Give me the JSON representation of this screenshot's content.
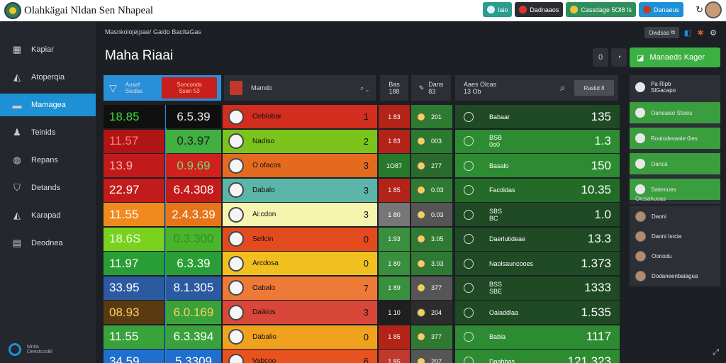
{
  "app": {
    "title": "Olahkägai Nldan Sen Nhapeal"
  },
  "top_pills": [
    {
      "label": "Iaio",
      "bg": "#2a9d8f",
      "dot": "#e0f0ff"
    },
    {
      "label": "Dadnaaos",
      "bg": "#2b2d33",
      "dot": "#d33"
    },
    {
      "label": "Cassdage 5Ol8 Is",
      "bg": "#2f8f5a",
      "dot": "#f0c040"
    },
    {
      "label": "Danaeus",
      "bg": "#1e90d6",
      "dot": "#c0392b"
    }
  ],
  "sidebar": {
    "items": [
      {
        "label": "Kapiar",
        "icon": "▦"
      },
      {
        "label": "Atoperqia",
        "icon": "◭"
      },
      {
        "label": "Mamagea",
        "icon": "▬"
      },
      {
        "label": "Teinids",
        "icon": "♟"
      },
      {
        "label": "Repans",
        "icon": "◍"
      },
      {
        "label": "Detands",
        "icon": "⛉"
      },
      {
        "label": "Karapad",
        "icon": "◭"
      },
      {
        "label": "Deodnea",
        "icon": "▤"
      }
    ],
    "footer": "Mniia\nOeestcosBl"
  },
  "header": {
    "breadcrumb": "Masnkoloje|pae/  Gaido BacitaGas",
    "btn": "Owdsas",
    "page_title": "Maha Riaai",
    "ctrl_a": "0",
    "primary": "Manaeds Kager"
  },
  "colheads": {
    "tab_a": "Ausaf\nSiedas",
    "tab_b": "Sonconds\nSsan 53",
    "team": "Mamdo",
    "col_a": "Bas\n188",
    "col_b": "Dans\n83",
    "col_c": "Aaes Olcas\n13 Ob",
    "search": "Raslid 8"
  },
  "rows": [
    {
      "v1": "18.85",
      "v2": "6.5.39",
      "team": "Oeblobar",
      "n": "1",
      "a": "1 83",
      "b": "201",
      "c": "Babaar",
      "big": "135",
      "bg1": "#101010",
      "bg2": "#0f0f0f",
      "team_bg": "#d22d1e",
      "a_bg": "#b32318",
      "b_bg": "#2f7a33",
      "c_bg": "#1f4a24",
      "fg1": "#3cdc3c",
      "fg2": "#e8e8e8"
    },
    {
      "v1": "11.57",
      "v2": "0.3.97",
      "team": "Nadiso",
      "n": "2",
      "a": "1 83",
      "b": "003",
      "c": "BSB\n0o0",
      "big": "1.3",
      "bg1": "#b01515",
      "bg2": "#40b040",
      "team_bg": "#7ac41c",
      "a_bg": "#b32318",
      "b_bg": "#2a7a2f",
      "c_bg": "#2d8c32",
      "fg1": "#ff8080",
      "fg2": "#222"
    },
    {
      "v1": "13.9",
      "v2": "0.9.69",
      "team": "O ofacos",
      "n": "3",
      "a": "1O87",
      "b": "277",
      "c": "Basalo",
      "big": "150",
      "bg1": "#c11a1a",
      "bg2": "#d22020",
      "team_bg": "#e36a1f",
      "a_bg": "#277a2b",
      "b_bg": "#2a6a2e",
      "c_bg": "#2d8c32",
      "fg1": "#ffb0b0",
      "fg2": "#6be06b"
    },
    {
      "v1": "22.97",
      "v2": "6.4.308",
      "team": "Dabalo",
      "n": "3",
      "a": "1 85",
      "b": "0.03",
      "c": "Facdidas",
      "big": "10.35",
      "bg1": "#c21b1b",
      "bg2": "#c21b1b",
      "team_bg": "#5bb5a8",
      "a_bg": "#b32318",
      "b_bg": "#2f7a33",
      "c_bg": "#236b27",
      "fg1": "#ffffff",
      "fg2": "#ffffff"
    },
    {
      "v1": "11.55",
      "v2": "2.4.3.39",
      "team": "Ai:cdon",
      "n": "3",
      "a": "1 80",
      "b": "0.03",
      "c": "SBS\nBC",
      "big": "1.0",
      "bg1": "#f08a1c",
      "bg2": "#e8741a",
      "team_bg": "#f5f5b0",
      "a_bg": "#777777",
      "b_bg": "#555555",
      "c_bg": "#1f4a24",
      "fg1": "#ffffff",
      "fg2": "#ffffff"
    },
    {
      "v1": "18.6S",
      "v2": "0.3.300",
      "team": "Sellcin",
      "n": "0",
      "a": "1.93",
      "b": "3.05",
      "c": "Daerlutideae",
      "big": "13.3",
      "bg1": "#7ad11e",
      "bg2": "#4ab52a",
      "team_bg": "#e34b1e",
      "a_bg": "#3a8f3e",
      "b_bg": "#2f7a33",
      "c_bg": "#1f4a24",
      "fg1": "#e8ffe8",
      "fg2": "#2d8c2d"
    },
    {
      "v1": "11.97",
      "v2": "6.3.39",
      "team": "Arcdosa",
      "n": "0",
      "a": "1 80",
      "b": "3.03",
      "c": "Naolsauncooes",
      "big": "1.373",
      "bg1": "#2a9e36",
      "bg2": "#2a9e36",
      "team_bg": "#f2c01e",
      "a_bg": "#3a8f3e",
      "b_bg": "#2f7a33",
      "c_bg": "#1f4a24",
      "fg1": "#ffffff",
      "fg2": "#ffffff"
    },
    {
      "v1": "33.95",
      "v2": "8.1.305",
      "team": "Oabalo",
      "n": "7",
      "a": "1 89",
      "b": "377",
      "c": "BSS\nSBE",
      "big": "1333",
      "bg1": "#2c5aa0",
      "bg2": "#2c5aa0",
      "team_bg": "#ee7a38",
      "a_bg": "#3a8f3e",
      "b_bg": "#555555",
      "c_bg": "#1f4a24",
      "fg1": "#ffffff",
      "fg2": "#ffffff"
    },
    {
      "v1": "08.93",
      "v2": "6.0.169",
      "team": "Daikios",
      "n": "3",
      "a": "1 10",
      "b": "204",
      "c": "Oaladdlaa",
      "big": "1.535",
      "bg1": "#5a3a10",
      "bg2": "#3aa23a",
      "team_bg": "#d9473a",
      "a_bg": "#1f1f1f",
      "b_bg": "#2c2c2c",
      "c_bg": "#1f4a24",
      "fg1": "#ffd060",
      "fg2": "#ffd060"
    },
    {
      "v1": "11.55",
      "v2": "6.3.394",
      "team": "Dabalio",
      "n": "0",
      "a": "1 85",
      "b": "377",
      "c": "Babia",
      "big": "1117",
      "bg1": "#3aa23a",
      "bg2": "#3aa23a",
      "team_bg": "#f0a21e",
      "a_bg": "#b32318",
      "b_bg": "#2f7a33",
      "c_bg": "#2d8c32",
      "fg1": "#ffffff",
      "fg2": "#ffffff"
    },
    {
      "v1": "34.59",
      "v2": "5.3309",
      "team": "Vabcoo",
      "n": "6",
      "a": "1 85",
      "b": "207",
      "c": "Daabbas",
      "big": "121.323",
      "bg1": "#1f6fd0",
      "bg2": "#1f6fd0",
      "team_bg": "#e7521e",
      "a_bg": "#c0392b",
      "b_bg": "#555555",
      "c_bg": "#2d8c32",
      "fg1": "#ffffff",
      "fg2": "#ffffff"
    }
  ],
  "rpanel": [
    {
      "label": "Pa  Ripb\nSlGacapo",
      "green": false
    },
    {
      "label": "Oaneaiso Stsies",
      "green": true
    },
    {
      "label": "Roaiodesaaie 0ies",
      "green": true
    },
    {
      "label": "Oanca",
      "green": true
    },
    {
      "label": "Saiemues",
      "green": true
    }
  ],
  "rpanel2": {
    "title": "Orcsahuoas",
    "players": [
      "Daoni",
      "Daoni Isrcia",
      "Oonodu",
      "Dodaneenbaiagua"
    ]
  }
}
